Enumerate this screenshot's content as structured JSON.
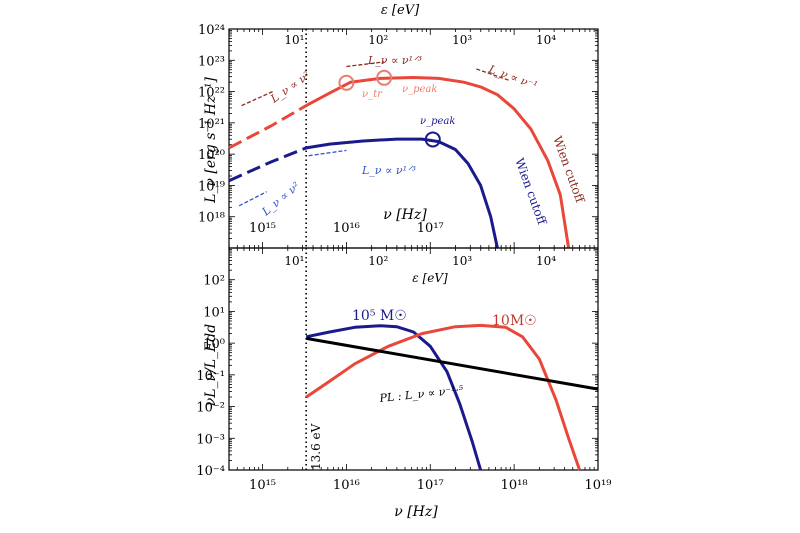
{
  "colors": {
    "red": "#e8473a",
    "blue": "#1a1a8c",
    "darkred": "#8b2a20",
    "lightred": "#e88070",
    "lightblue": "#3355cc",
    "black": "#000000"
  },
  "chart_data": [
    {
      "type": "line",
      "panel": "top",
      "xlabel": "ν [Hz]",
      "ylabel": "L_ν [erg s⁻¹ Hz⁻¹]",
      "top_axis_label": "ε [eV]",
      "xlim_log10": [
        14.6,
        19
      ],
      "ylim_log10": [
        17,
        24
      ],
      "x_ticks": [
        {
          "v": 15,
          "label": "10¹⁵"
        },
        {
          "v": 16,
          "label": "10¹⁶"
        },
        {
          "v": 17,
          "label": "10¹⁷"
        }
      ],
      "y_ticks": [
        {
          "v": 18,
          "label": "10¹⁸"
        },
        {
          "v": 19,
          "label": "10¹⁹"
        },
        {
          "v": 20,
          "label": "10²⁰"
        },
        {
          "v": 21,
          "label": "10²¹"
        },
        {
          "v": 22,
          "label": "10²²"
        },
        {
          "v": 23,
          "label": "10²³"
        },
        {
          "v": 24,
          "label": "10²⁴"
        }
      ],
      "top_ticks": [
        {
          "v": 15.38,
          "label": "10¹"
        },
        {
          "v": 16.38,
          "label": "10²"
        },
        {
          "v": 17.38,
          "label": "10³"
        },
        {
          "v": 18.38,
          "label": "10⁴"
        }
      ],
      "series": [
        {
          "color": "red",
          "style": "dashed",
          "points": [
            [
              14.6,
              20.2
            ],
            [
              15.1,
              20.9
            ],
            [
              15.52,
              21.55
            ]
          ]
        },
        {
          "color": "red",
          "style": "solid",
          "points": [
            [
              15.52,
              21.55
            ],
            [
              15.8,
              21.95
            ],
            [
              16.05,
              22.3
            ],
            [
              16.4,
              22.42
            ],
            [
              16.8,
              22.45
            ],
            [
              17.1,
              22.42
            ],
            [
              17.4,
              22.3
            ],
            [
              17.6,
              22.15
            ],
            [
              17.8,
              21.9
            ],
            [
              18.0,
              21.45
            ],
            [
              18.2,
              20.8
            ],
            [
              18.4,
              19.8
            ],
            [
              18.55,
              18.7
            ],
            [
              18.65,
              17.0
            ]
          ]
        },
        {
          "color": "blue",
          "style": "dashed",
          "points": [
            [
              14.6,
              19.15
            ],
            [
              15.1,
              19.75
            ],
            [
              15.52,
              20.2
            ]
          ]
        },
        {
          "color": "blue",
          "style": "solid",
          "points": [
            [
              15.52,
              20.2
            ],
            [
              15.8,
              20.32
            ],
            [
              16.2,
              20.42
            ],
            [
              16.6,
              20.48
            ],
            [
              16.9,
              20.48
            ],
            [
              17.1,
              20.4
            ],
            [
              17.3,
              20.15
            ],
            [
              17.45,
              19.7
            ],
            [
              17.6,
              19.0
            ],
            [
              17.72,
              18.0
            ],
            [
              17.8,
              17.0
            ]
          ]
        }
      ],
      "guides": [
        {
          "color": "darkred",
          "points": [
            [
              14.75,
              21.55
            ],
            [
              15.12,
              22.0
            ]
          ]
        },
        {
          "color": "darkred",
          "points": [
            [
              16.0,
              22.8
            ],
            [
              16.45,
              22.95
            ]
          ]
        },
        {
          "color": "darkred",
          "points": [
            [
              17.55,
              22.72
            ],
            [
              17.95,
              22.35
            ]
          ]
        },
        {
          "color": "lightblue",
          "points": [
            [
              14.72,
              18.35
            ],
            [
              15.05,
              18.8
            ]
          ]
        },
        {
          "color": "lightblue",
          "points": [
            [
              15.55,
              19.95
            ],
            [
              16.0,
              20.12
            ]
          ]
        }
      ],
      "markers": [
        {
          "color": "lightred",
          "x": 16.0,
          "y": 22.28,
          "label": "ν_tr"
        },
        {
          "color": "lightred",
          "x": 16.45,
          "y": 22.44,
          "label": "ν_peak"
        },
        {
          "color": "blue",
          "x": 17.03,
          "y": 20.47,
          "label": "ν_peak"
        }
      ],
      "vline_x": 15.52
    },
    {
      "type": "line",
      "panel": "bottom",
      "xlabel": "ν [Hz]",
      "ylabel": "νL_ν/L_Edd",
      "top_axis_label": "ε [eV]",
      "xlim_log10": [
        14.6,
        19
      ],
      "ylim_log10": [
        -4,
        3
      ],
      "x_ticks": [
        {
          "v": 15,
          "label": "10¹⁵"
        },
        {
          "v": 16,
          "label": "10¹⁶"
        },
        {
          "v": 17,
          "label": "10¹⁷"
        },
        {
          "v": 18,
          "label": "10¹⁸"
        },
        {
          "v": 19,
          "label": "10¹⁹"
        }
      ],
      "y_ticks": [
        {
          "v": -4,
          "label": "10⁻⁴"
        },
        {
          "v": -3,
          "label": "10⁻³"
        },
        {
          "v": -2,
          "label": "10⁻²"
        },
        {
          "v": -1,
          "label": "10⁻¹"
        },
        {
          "v": 0,
          "label": "10⁰"
        },
        {
          "v": 1,
          "label": "10¹"
        },
        {
          "v": 2,
          "label": "10²"
        }
      ],
      "top_ticks": [
        {
          "v": 15.38,
          "label": "10¹"
        },
        {
          "v": 16.38,
          "label": "10²"
        },
        {
          "v": 17.38,
          "label": "10³"
        },
        {
          "v": 18.38,
          "label": "10⁴"
        }
      ],
      "series": [
        {
          "name": "10⁵ M☉",
          "color": "blue",
          "style": "solid",
          "points": [
            [
              15.52,
              0.2
            ],
            [
              15.8,
              0.35
            ],
            [
              16.1,
              0.5
            ],
            [
              16.4,
              0.55
            ],
            [
              16.6,
              0.52
            ],
            [
              16.8,
              0.35
            ],
            [
              17.0,
              -0.1
            ],
            [
              17.2,
              -0.9
            ],
            [
              17.35,
              -1.9
            ],
            [
              17.5,
              -3.1
            ],
            [
              17.6,
              -4.0
            ]
          ]
        },
        {
          "name": "10M☉",
          "color": "red",
          "style": "solid",
          "points": [
            [
              15.52,
              -1.7
            ],
            [
              15.8,
              -1.2
            ],
            [
              16.1,
              -0.65
            ],
            [
              16.5,
              -0.1
            ],
            [
              16.9,
              0.3
            ],
            [
              17.3,
              0.52
            ],
            [
              17.6,
              0.56
            ],
            [
              17.9,
              0.5
            ],
            [
              18.1,
              0.2
            ],
            [
              18.3,
              -0.5
            ],
            [
              18.5,
              -1.8
            ],
            [
              18.65,
              -3.0
            ],
            [
              18.78,
              -4.0
            ]
          ]
        },
        {
          "name": "PL",
          "color": "black",
          "style": "solid",
          "points": [
            [
              15.52,
              0.15
            ],
            [
              19,
              -1.45
            ]
          ]
        }
      ],
      "vline_x": 15.52
    }
  ],
  "annotations": {
    "top": {
      "top_label": "ε [eV]",
      "ylabel": "L_ν [erg s⁻¹ Hz⁻¹]",
      "xlabel": "ν [Hz]",
      "nu2_red": "L_ν ∝ ν²",
      "nu13_red": "L_ν ∝ ν¹ᐟ³",
      "num1_red": "L_ν ∝ ν⁻¹",
      "nutr": "ν_tr",
      "nupeak_red": "ν_peak",
      "nupeak_blue": "ν_peak",
      "nu13_blue": "L_ν ∝ ν¹ᐟ³",
      "nu2_blue": "L_ν ∝ ν²",
      "wien_red": "Wien cutoff",
      "wien_blue": "Wien cutoff"
    },
    "bottom": {
      "top_label": "ε [eV]",
      "ylabel": "νL_ν/L_Edd",
      "xlabel": "ν [Hz]",
      "mass_blue": "10⁵ M☉",
      "mass_red": "10M☉",
      "pl": "PL :  L_ν ∝ ν⁻¹·⁵",
      "ev136": "13.6 eV"
    }
  }
}
